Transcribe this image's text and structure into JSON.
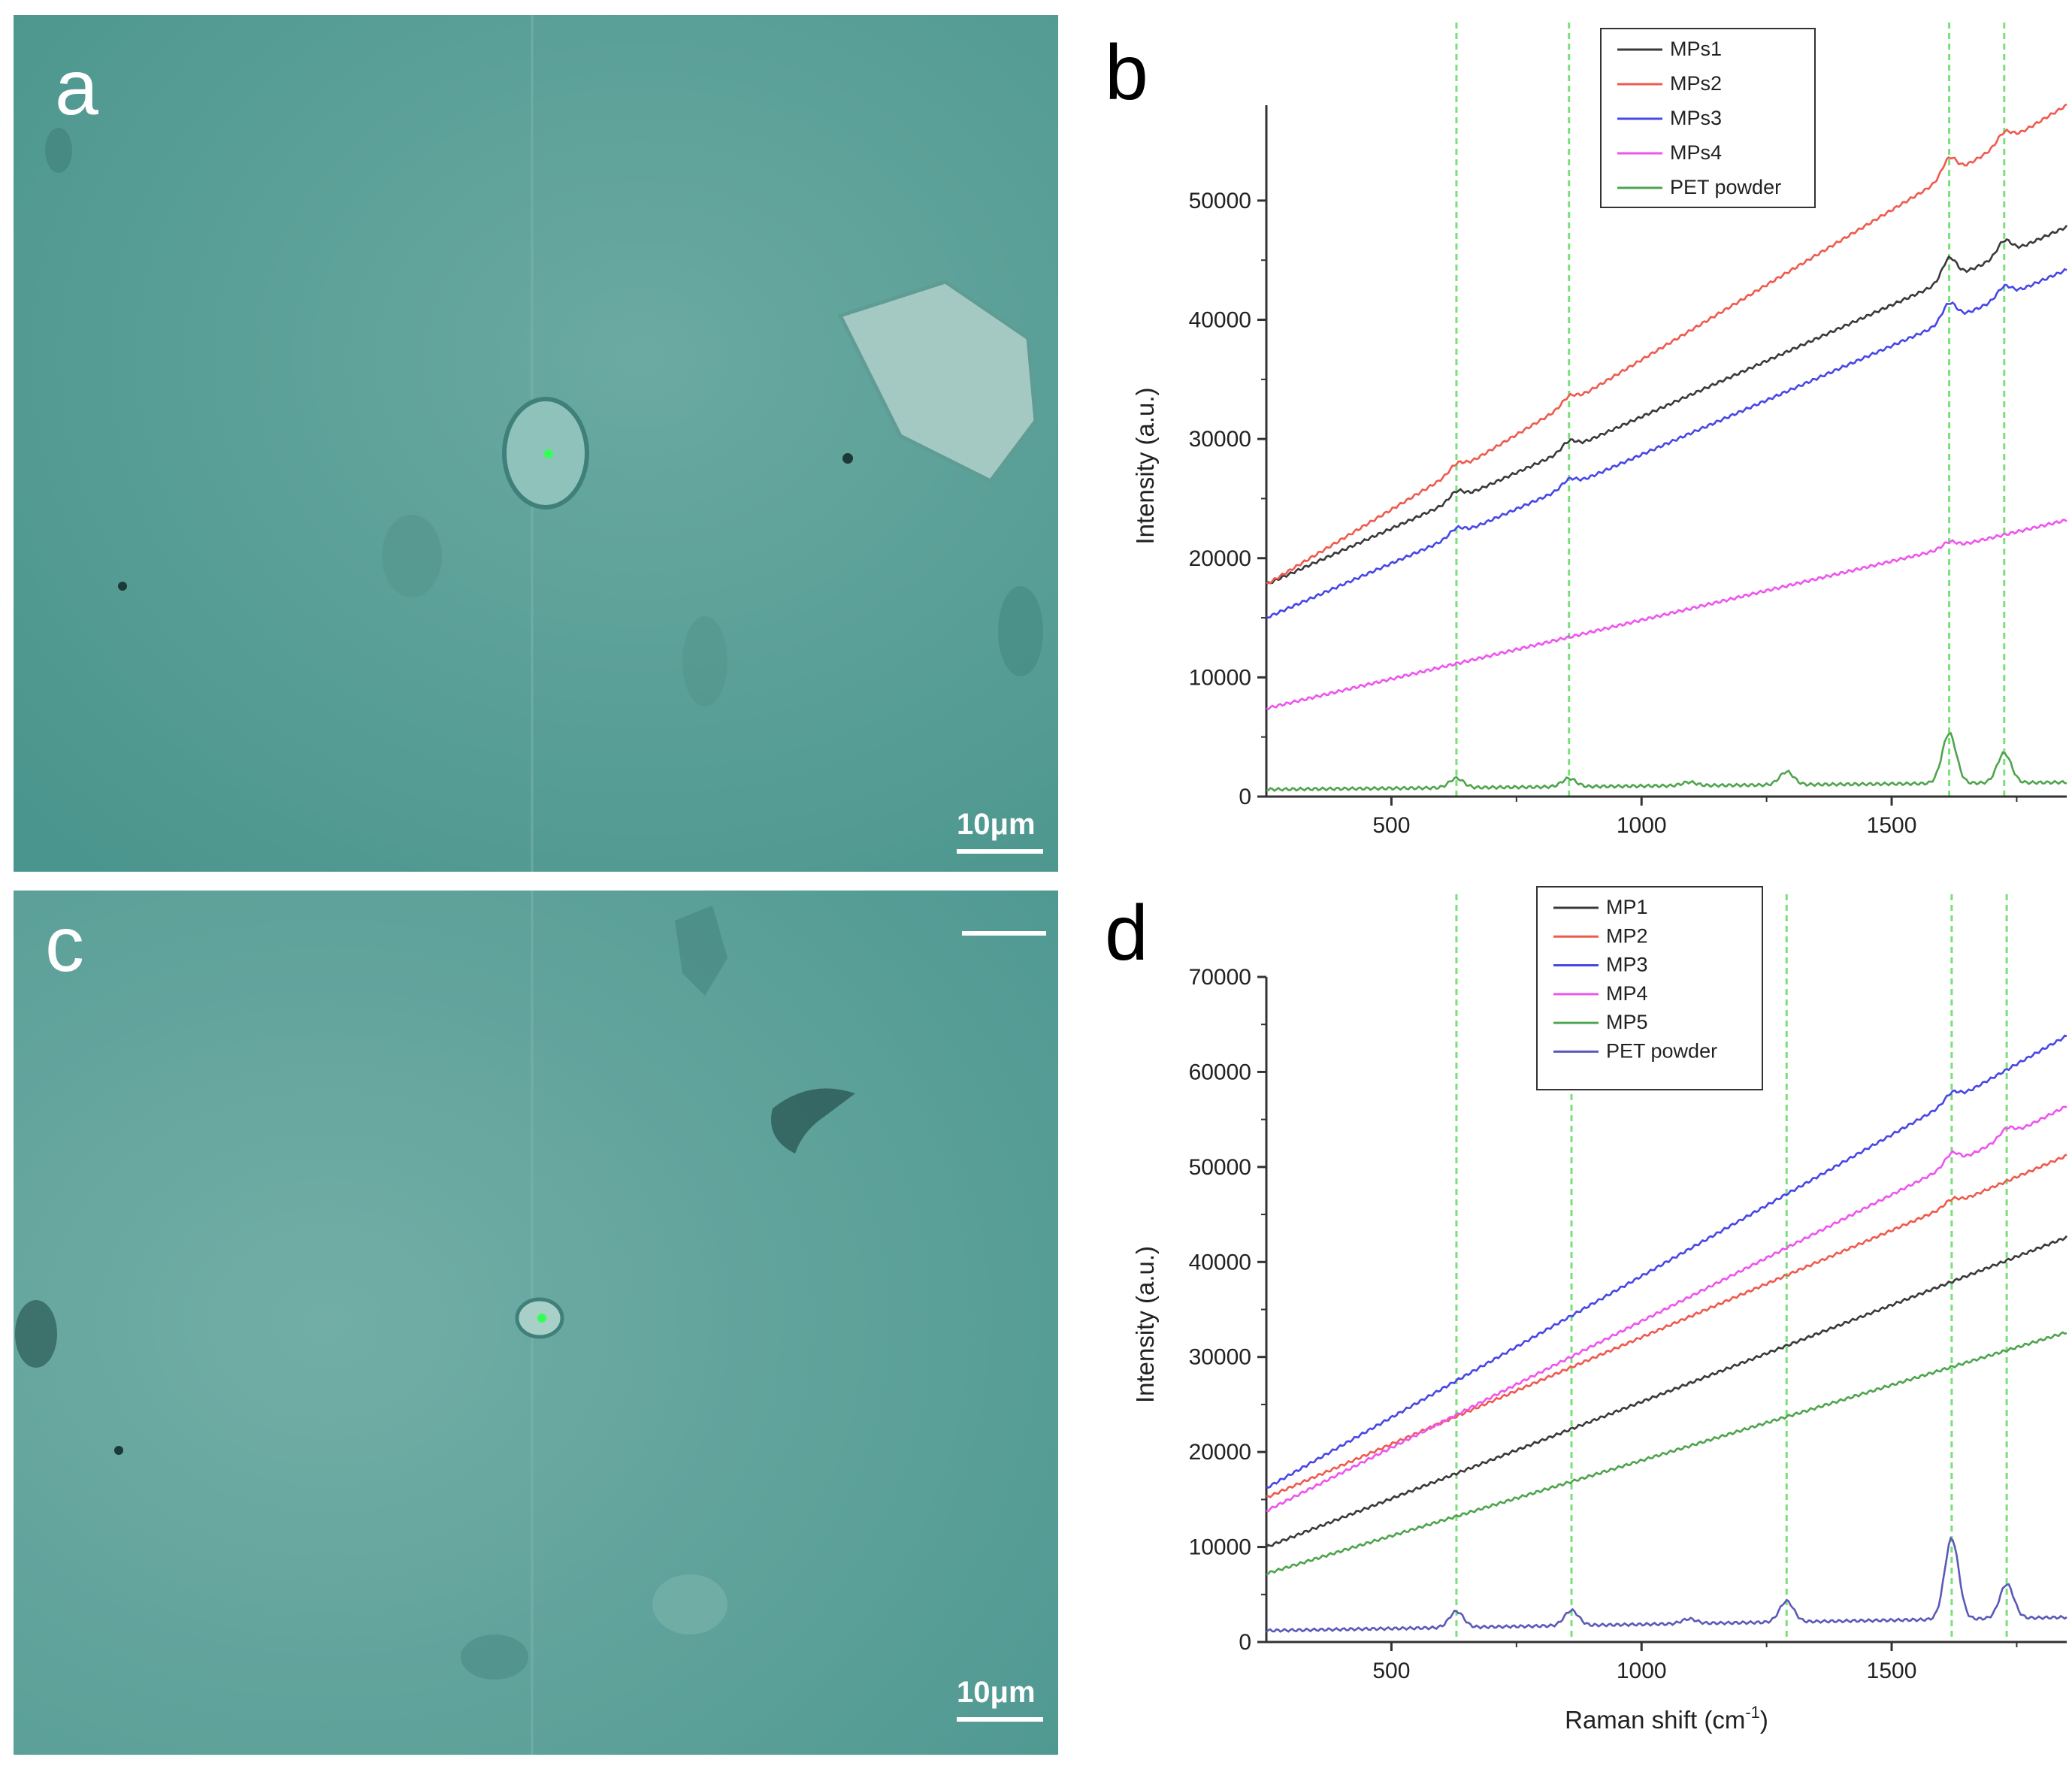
{
  "panels": {
    "a": {
      "letter": "a",
      "scale_label": "10μm"
    },
    "b": {
      "letter": "b"
    },
    "c": {
      "letter": "c",
      "scale_label": "10μm"
    },
    "d": {
      "letter": "d"
    }
  },
  "colors": {
    "micro_bg": "#4f9b93",
    "black": "#3a3a3a",
    "red": "#ef5a4f",
    "blue": "#4747e8",
    "magenta": "#ee55ee",
    "green": "#4fa44f",
    "navy": "#5a5ab8",
    "guide": "#7ae07a"
  },
  "chart_data": [
    {
      "type": "line",
      "panel": "b",
      "ylabel": "Intensity (a.u.)",
      "xlabel": "",
      "xlim": [
        250,
        1850
      ],
      "ylim": [
        0,
        58000
      ],
      "xticks": [
        500,
        1000,
        1500
      ],
      "yticks": [
        0,
        10000,
        20000,
        30000,
        40000,
        50000
      ],
      "guide_lines": [
        630,
        855,
        1615,
        1725
      ],
      "legend_position": "top-center",
      "series": [
        {
          "name": "MPs1",
          "color": "black",
          "start": 17800,
          "end": 47800,
          "peaks": [
            [
              630,
              700
            ],
            [
              855,
              700
            ],
            [
              1615,
              1800
            ],
            [
              1725,
              1200
            ]
          ],
          "offset": 0
        },
        {
          "name": "MPs2",
          "color": "red",
          "start": 17800,
          "end": 58000,
          "peaks": [
            [
              630,
              600
            ],
            [
              855,
              600
            ],
            [
              1615,
              1500
            ],
            [
              1725,
              900
            ]
          ],
          "offset": 0
        },
        {
          "name": "MPs3",
          "color": "blue",
          "start": 15000,
          "end": 44200,
          "peaks": [
            [
              630,
              600
            ],
            [
              855,
              600
            ],
            [
              1615,
              1500
            ],
            [
              1725,
              900
            ]
          ],
          "offset": 0
        },
        {
          "name": "MPs4",
          "color": "magenta",
          "start": 7400,
          "end": 23200,
          "peaks": [
            [
              1615,
              500
            ]
          ],
          "offset": 0
        },
        {
          "name": "PET powder",
          "color": "green",
          "start": 600,
          "end": 1200,
          "peaks": [
            [
              630,
              800
            ],
            [
              855,
              700
            ],
            [
              1095,
              300
            ],
            [
              1290,
              1100
            ],
            [
              1615,
              4200
            ],
            [
              1725,
              2500
            ]
          ],
          "offset": 0
        }
      ]
    },
    {
      "type": "line",
      "panel": "d",
      "ylabel": "Intensity (a.u.)",
      "xlabel": "Raman shift (cm",
      "xlabel_sup": "-1",
      "xlabel_end": ")",
      "xlim": [
        250,
        1850
      ],
      "ylim": [
        0,
        70000
      ],
      "xticks": [
        500,
        1000,
        1500
      ],
      "yticks": [
        0,
        10000,
        20000,
        30000,
        40000,
        50000,
        60000,
        70000
      ],
      "guide_lines": [
        630,
        860,
        1290,
        1620,
        1730
      ],
      "legend_position": "top-center",
      "series": [
        {
          "name": "MP1",
          "color": "black",
          "start": 10000,
          "end": 42600,
          "peaks": [],
          "offset": 0
        },
        {
          "name": "MP2",
          "color": "red",
          "start": 15200,
          "end": 51200,
          "peaks": [
            [
              1620,
              600
            ]
          ],
          "offset": 0
        },
        {
          "name": "MP3",
          "color": "blue",
          "start": 16200,
          "end": 63800,
          "peaks": [
            [
              1620,
              900
            ]
          ],
          "offset": 0
        },
        {
          "name": "MP4",
          "color": "magenta",
          "start": 13800,
          "end": 56400,
          "peaks": [
            [
              1620,
              1200
            ],
            [
              1730,
              900
            ]
          ],
          "offset": 0
        },
        {
          "name": "MP5",
          "color": "green",
          "start": 7200,
          "end": 32600,
          "peaks": [],
          "offset": 0
        },
        {
          "name": "PET powder",
          "color": "navy",
          "start": 1200,
          "end": 2600,
          "peaks": [
            [
              630,
              1700
            ],
            [
              860,
              1600
            ],
            [
              1095,
              500
            ],
            [
              1290,
              2200
            ],
            [
              1620,
              8500
            ],
            [
              1730,
              3600
            ]
          ],
          "offset": 0
        }
      ]
    }
  ]
}
